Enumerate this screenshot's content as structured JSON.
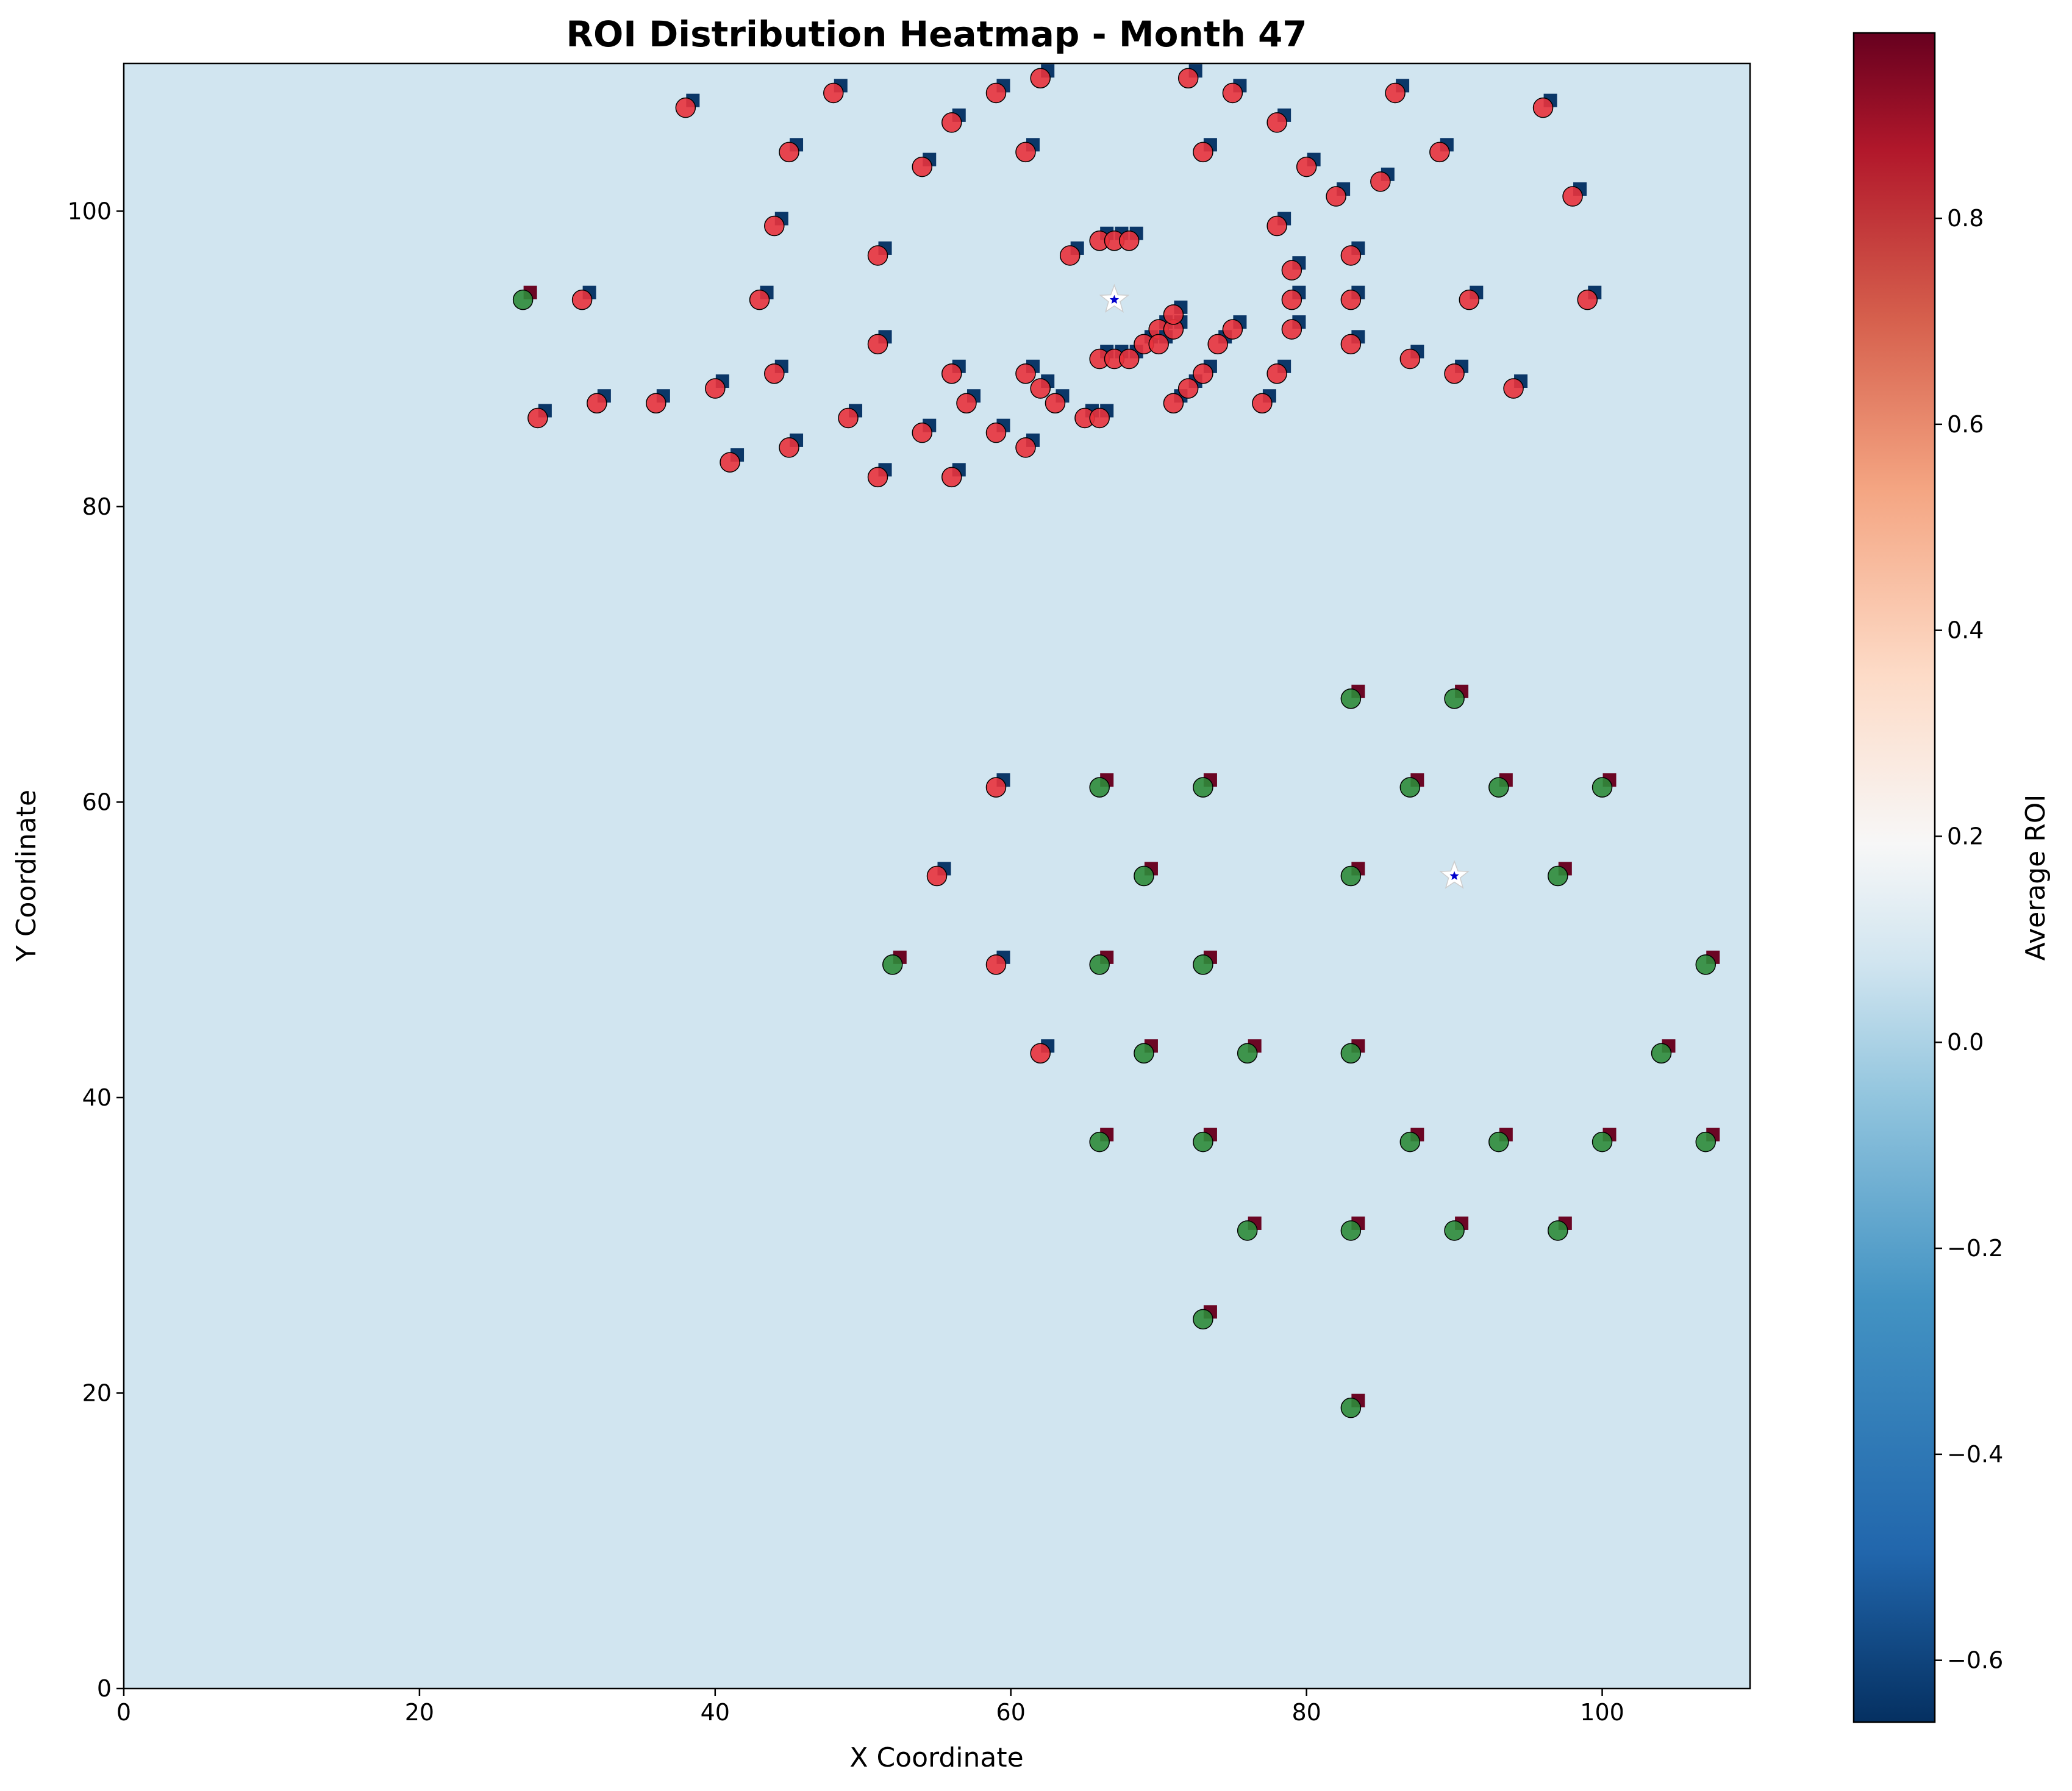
{
  "chart_data": {
    "type": "heatmap",
    "title": "ROI Distribution Heatmap - Month 47",
    "xlabel": "X Coordinate",
    "ylabel": "Y Coordinate",
    "xlim": [
      0,
      110
    ],
    "ylim": [
      0,
      110
    ],
    "x_ticks": [
      "0",
      "20",
      "40",
      "60",
      "80",
      "100"
    ],
    "y_ticks": [
      "0",
      "20",
      "40",
      "60",
      "80",
      "100"
    ],
    "grid": false,
    "colorbar": {
      "label": "Average ROI",
      "range": [
        -0.66,
        0.98
      ],
      "ticks": [
        "−0.6",
        "−0.4",
        "−0.2",
        "0.0",
        "0.2",
        "0.4",
        "0.6",
        "0.8"
      ],
      "colormap": "RdBu_r"
    },
    "background_value": 0.0,
    "colors": {
      "background": "#d1e5f0",
      "negative_circle": "#e8323c",
      "positive_circle": "#2e8b3a",
      "negative_square": "#0b3768",
      "positive_square": "#6b0624",
      "star": "#ffffff"
    },
    "negative_circles": [
      [
        38,
        107
      ],
      [
        48,
        108
      ],
      [
        56,
        106
      ],
      [
        59,
        108
      ],
      [
        62,
        109
      ],
      [
        72,
        109
      ],
      [
        75,
        108
      ],
      [
        78,
        106
      ],
      [
        86,
        108
      ],
      [
        96,
        107
      ],
      [
        45,
        104
      ],
      [
        54,
        103
      ],
      [
        61,
        104
      ],
      [
        73,
        104
      ],
      [
        80,
        103
      ],
      [
        89,
        104
      ],
      [
        82,
        101
      ],
      [
        85,
        102
      ],
      [
        98,
        101
      ],
      [
        44,
        99
      ],
      [
        51,
        97
      ],
      [
        64,
        97
      ],
      [
        66,
        98
      ],
      [
        67,
        98
      ],
      [
        68,
        98
      ],
      [
        78,
        99
      ],
      [
        79,
        96
      ],
      [
        83,
        97
      ],
      [
        31,
        94
      ],
      [
        43,
        94
      ],
      [
        79,
        94
      ],
      [
        83,
        94
      ],
      [
        91,
        94
      ],
      [
        99,
        94
      ],
      [
        51,
        91
      ],
      [
        66,
        90
      ],
      [
        67,
        90
      ],
      [
        68,
        90
      ],
      [
        69,
        91
      ],
      [
        70,
        92
      ],
      [
        70,
        91
      ],
      [
        71,
        92
      ],
      [
        71,
        93
      ],
      [
        74,
        91
      ],
      [
        75,
        92
      ],
      [
        79,
        92
      ],
      [
        83,
        91
      ],
      [
        87,
        90
      ],
      [
        28,
        86
      ],
      [
        32,
        87
      ],
      [
        36,
        87
      ],
      [
        40,
        88
      ],
      [
        44,
        89
      ],
      [
        49,
        86
      ],
      [
        54,
        85
      ],
      [
        56,
        89
      ],
      [
        57,
        87
      ],
      [
        59,
        85
      ],
      [
        61,
        89
      ],
      [
        62,
        88
      ],
      [
        63,
        87
      ],
      [
        65,
        86
      ],
      [
        66,
        86
      ],
      [
        71,
        87
      ],
      [
        72,
        88
      ],
      [
        73,
        89
      ],
      [
        77,
        87
      ],
      [
        78,
        89
      ],
      [
        90,
        89
      ],
      [
        94,
        88
      ],
      [
        41,
        83
      ],
      [
        45,
        84
      ],
      [
        51,
        82
      ],
      [
        56,
        82
      ],
      [
        61,
        84
      ],
      [
        59,
        61
      ],
      [
        55,
        55
      ],
      [
        59,
        49
      ],
      [
        62,
        43
      ]
    ],
    "positive_circles": [
      [
        27,
        94
      ],
      [
        83,
        67
      ],
      [
        90,
        67
      ],
      [
        66,
        61
      ],
      [
        73,
        61
      ],
      [
        87,
        61
      ],
      [
        93,
        61
      ],
      [
        100,
        61
      ],
      [
        69,
        55
      ],
      [
        83,
        55
      ],
      [
        97,
        55
      ],
      [
        52,
        49
      ],
      [
        66,
        49
      ],
      [
        73,
        49
      ],
      [
        107,
        49
      ],
      [
        69,
        43
      ],
      [
        76,
        43
      ],
      [
        83,
        43
      ],
      [
        104,
        43
      ],
      [
        66,
        37
      ],
      [
        73,
        37
      ],
      [
        87,
        37
      ],
      [
        93,
        37
      ],
      [
        100,
        37
      ],
      [
        107,
        37
      ],
      [
        76,
        31
      ],
      [
        83,
        31
      ],
      [
        90,
        31
      ],
      [
        97,
        31
      ],
      [
        73,
        25
      ],
      [
        83,
        19
      ]
    ],
    "stars": [
      [
        67,
        94
      ],
      [
        90,
        55
      ]
    ]
  }
}
